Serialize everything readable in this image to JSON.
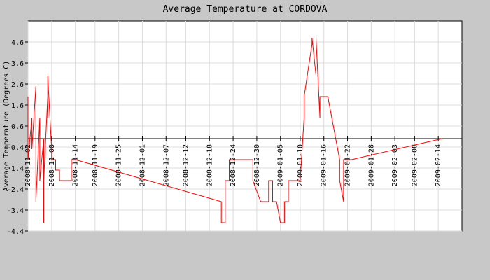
{
  "chart_data": {
    "type": "line",
    "title": "Average Temperature at CORDOVA",
    "xlabel": "",
    "ylabel": "Average Temperature (Degrees C)",
    "ylim": [
      -4.4,
      5.6
    ],
    "yticks": [
      4.6,
      3.6,
      2.6,
      1.6,
      0.6,
      -0.4,
      -1.4,
      -2.4,
      -3.4,
      -4.4
    ],
    "ytick_labels": [
      "4.6",
      "3.6",
      "2.6",
      "1.6",
      "0.6",
      "-0.4",
      "-1.4",
      "-2.4",
      "-3.4",
      "-4.4"
    ],
    "xlim": [
      "2008-11-02",
      "2009-02-20"
    ],
    "xticks": [
      "2008-11-02",
      "2008-11-08",
      "2008-11-14",
      "2008-11-19",
      "2008-11-25",
      "2008-12-01",
      "2008-12-07",
      "2008-12-12",
      "2008-12-18",
      "2008-12-24",
      "2008-12-30",
      "2009-01-05",
      "2009-01-10",
      "2009-01-16",
      "2009-01-22",
      "2009-01-28",
      "2009-02-03",
      "2009-02-08",
      "2009-02-14"
    ],
    "zero_line": 0,
    "grid": true,
    "legend": "none",
    "colors": {
      "line": "#ff0000",
      "background": "#c8c8c8",
      "plot_area": "#ffffff",
      "axis": "#000000",
      "grid": "#dcdcdc"
    },
    "series": [
      {
        "x": [
          "2008-11-02",
          "2008-11-02",
          "2008-11-03",
          "2008-11-03",
          "2008-11-04",
          "2008-11-04",
          "2008-11-05",
          "2008-11-05",
          "2008-11-06",
          "2008-11-06",
          "2008-11-06",
          "2008-11-07",
          "2008-11-07",
          "2008-11-07",
          "2008-11-08",
          "2008-11-08",
          "2008-11-09",
          "2008-11-09",
          "2008-11-10",
          "2008-11-10",
          "2008-11-11",
          "2008-11-11",
          "2008-11-12",
          "2008-11-12",
          "2008-11-13",
          "2008-11-13",
          "2008-11-14",
          "2008-12-21",
          "2008-12-21",
          "2008-12-22",
          "2008-12-22",
          "2008-12-23",
          "2008-12-23",
          "2008-12-24",
          "2008-12-24",
          "2008-12-25",
          "2008-12-25",
          "2008-12-29",
          "2008-12-29",
          "2008-12-31",
          "2008-12-31",
          "2009-01-02",
          "2009-01-02",
          "2009-01-03",
          "2009-01-03",
          "2009-01-04",
          "2009-01-04",
          "2009-01-05",
          "2009-01-05",
          "2009-01-06",
          "2009-01-06",
          "2009-01-07",
          "2009-01-07",
          "2009-01-08",
          "2009-01-08",
          "2009-01-09",
          "2009-01-09",
          "2009-01-10",
          "2009-01-10",
          "2009-01-11",
          "2009-01-11",
          "2009-01-13",
          "2009-01-13",
          "2009-01-14",
          "2009-01-14",
          "2009-01-15",
          "2009-01-15",
          "2009-01-16",
          "2009-01-16",
          "2009-01-17",
          "2009-01-17",
          "2009-01-18",
          "2009-01-18",
          "2009-01-20",
          "2009-01-20",
          "2009-01-21",
          "2009-01-21",
          "2009-01-22",
          "2009-01-22",
          "2009-01-23",
          "2009-02-15"
        ],
        "y": [
          2.0,
          -1.0,
          1.0,
          -0.5,
          2.5,
          -3.0,
          1.0,
          -2.0,
          0.0,
          -4.0,
          -2.0,
          2.0,
          1.0,
          3.0,
          -0.5,
          -1.0,
          -1.0,
          -1.5,
          -1.5,
          -2.0,
          -2.0,
          -2.0,
          -2.0,
          -2.0,
          -2.0,
          -1.0,
          -1.0,
          -3.0,
          -4.0,
          -4.0,
          -2.0,
          -2.0,
          -1.0,
          -1.0,
          -1.0,
          -1.0,
          -1.0,
          -1.0,
          -2.0,
          -3.0,
          -3.0,
          -3.0,
          -2.0,
          -2.0,
          -3.0,
          -3.0,
          -3.0,
          -4.0,
          -4.0,
          -4.0,
          -3.0,
          -3.0,
          -2.0,
          -2.0,
          -2.0,
          -2.0,
          -2.0,
          -2.0,
          -2.0,
          1.0,
          2.0,
          4.5,
          4.8,
          3.0,
          4.8,
          1.0,
          2.0,
          2.0,
          2.0,
          2.0,
          2.0,
          1.0,
          1.0,
          -1.0,
          -2.0,
          -3.0,
          -1.0,
          -1.0,
          -1.0,
          -1.0,
          0.0
        ]
      }
    ]
  }
}
